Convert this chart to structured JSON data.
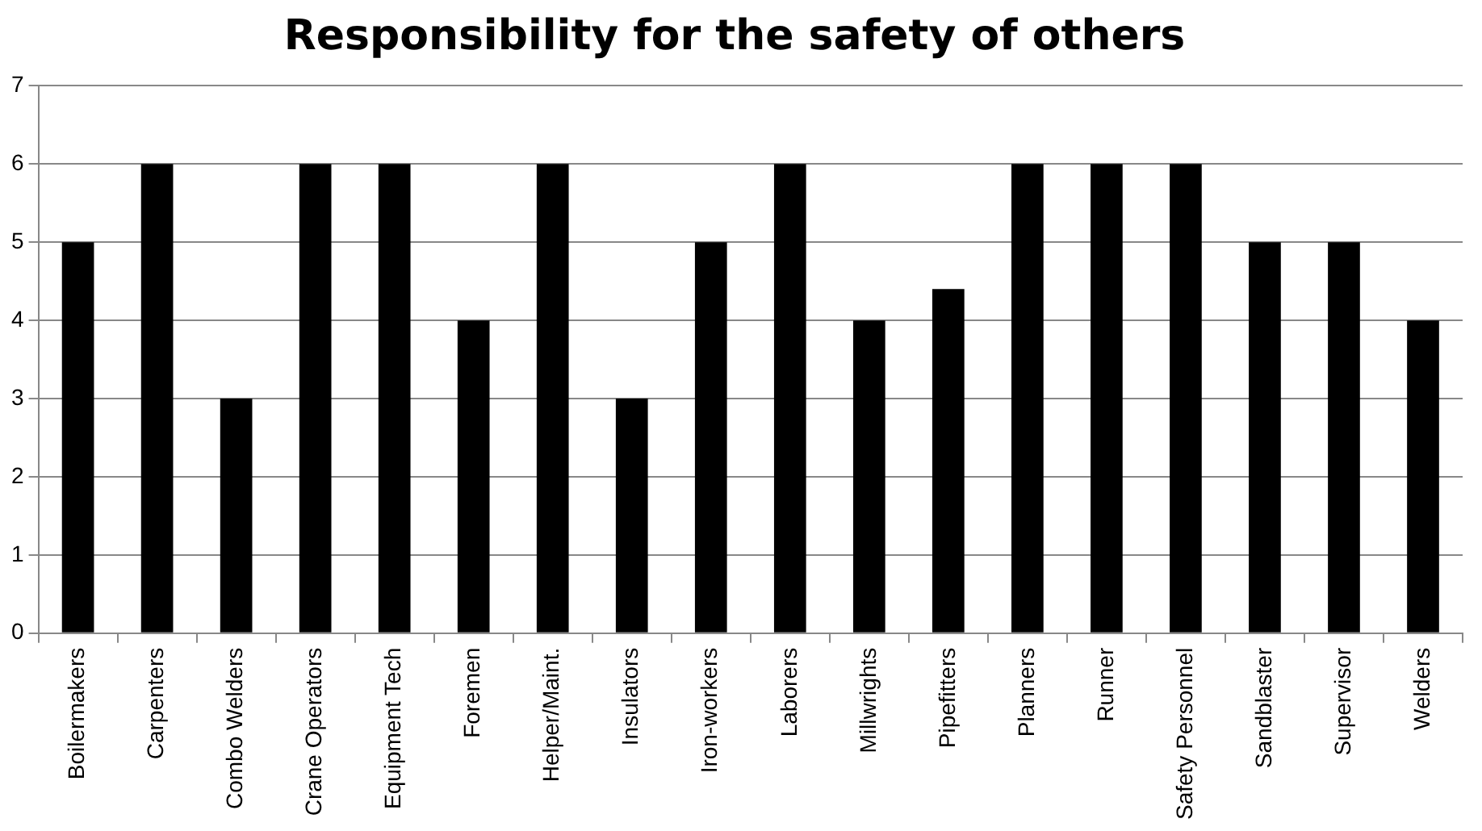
{
  "chart_data": {
    "type": "bar",
    "title": "Responsibility for the safety of others",
    "categories": [
      "Boilermakers",
      "Carpenters",
      "Combo Welders",
      "Crane Operators",
      "Equipment Tech",
      "Foremen",
      "Helper/Maint.",
      "Insulators",
      "Iron-workers",
      "Laborers",
      "Millwrights",
      "Pipefitters",
      "Planners",
      "Runner",
      "Safety Personnel",
      "Sandblaster",
      "Supervisor",
      "Welders"
    ],
    "values": [
      5,
      6,
      3,
      6,
      6,
      4,
      6,
      3,
      5,
      6,
      4,
      4.4,
      6,
      6,
      6,
      5,
      5,
      4
    ],
    "color": "#000000",
    "ylim": [
      0,
      7
    ],
    "yticks": [
      0,
      1,
      2,
      3,
      4,
      5,
      6,
      7
    ],
    "grid": "y"
  }
}
